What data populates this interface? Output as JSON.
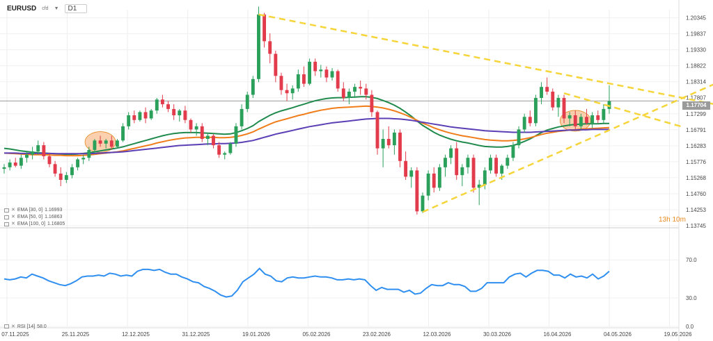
{
  "header": {
    "symbol": "EURUSD",
    "symbol_suffix": "cfd",
    "timeframe": "D1"
  },
  "indicators": {
    "ema": [
      {
        "label": "EMA [30, 0]",
        "value": "1.16993",
        "color": "#1f8a4c"
      },
      {
        "label": "EMA [50, 0]",
        "value": "1.16863",
        "color": "#f07d1a"
      },
      {
        "label": "EMA [100, 0]",
        "value": "1.16805",
        "color": "#5b3fb5"
      }
    ],
    "rsi": {
      "label": "RSI [14]",
      "value": "58.0",
      "color": "#2f8ff0"
    }
  },
  "countdown": "13h 10m",
  "current_price": "1.17704",
  "chart_data": [
    {
      "type": "candlestick",
      "x_labels": [
        "07.11.2025",
        "25.11.2025",
        "12.12.2025",
        "31.12.2025",
        "19.01.2026",
        "05.02.2026",
        "23.02.2026",
        "12.03.2026",
        "30.03.2026",
        "16.04.2026",
        "04.05.2026",
        "19.05.2026"
      ],
      "y_ticks": [
        "1.20345",
        "1.19837",
        "1.19330",
        "1.18822",
        "1.18314",
        "1.17807",
        "1.17299",
        "1.16791",
        "1.16283",
        "1.15776",
        "1.15268",
        "1.14760",
        "1.14253",
        "1.13745"
      ],
      "ylim": [
        1.13745,
        1.206
      ],
      "candles": [
        [
          1.1555,
          1.157,
          1.154,
          1.156
        ],
        [
          1.156,
          1.1585,
          1.155,
          1.1575
        ],
        [
          1.1575,
          1.159,
          1.156,
          1.1565
        ],
        [
          1.1565,
          1.16,
          1.1555,
          1.159
        ],
        [
          1.159,
          1.161,
          1.1575,
          1.16
        ],
        [
          1.16,
          1.1625,
          1.1585,
          1.161
        ],
        [
          1.161,
          1.1645,
          1.16,
          1.163
        ],
        [
          1.163,
          1.164,
          1.1585,
          1.1595
        ],
        [
          1.1595,
          1.1605,
          1.156,
          1.157
        ],
        [
          1.157,
          1.158,
          1.153,
          1.154
        ],
        [
          1.154,
          1.156,
          1.15,
          1.152
        ],
        [
          1.152,
          1.1545,
          1.151,
          1.1535
        ],
        [
          1.1535,
          1.157,
          1.1525,
          1.156
        ],
        [
          1.156,
          1.159,
          1.155,
          1.1585
        ],
        [
          1.1585,
          1.16,
          1.157,
          1.159
        ],
        [
          1.159,
          1.1625,
          1.158,
          1.1615
        ],
        [
          1.1615,
          1.165,
          1.1605,
          1.1645
        ],
        [
          1.1645,
          1.166,
          1.1625,
          1.1635
        ],
        [
          1.1635,
          1.165,
          1.162,
          1.1645
        ],
        [
          1.1645,
          1.166,
          1.1615,
          1.1625
        ],
        [
          1.1625,
          1.165,
          1.162,
          1.1645
        ],
        [
          1.1645,
          1.17,
          1.164,
          1.169
        ],
        [
          1.169,
          1.1735,
          1.168,
          1.1725
        ],
        [
          1.1725,
          1.174,
          1.17,
          1.171
        ],
        [
          1.171,
          1.174,
          1.1705,
          1.1735
        ],
        [
          1.1735,
          1.175,
          1.17,
          1.1715
        ],
        [
          1.1715,
          1.1745,
          1.171,
          1.174
        ],
        [
          1.174,
          1.178,
          1.173,
          1.1775
        ],
        [
          1.1775,
          1.179,
          1.175,
          1.176
        ],
        [
          1.176,
          1.177,
          1.1735,
          1.1745
        ],
        [
          1.1745,
          1.176,
          1.171,
          1.1725
        ],
        [
          1.1725,
          1.1745,
          1.1705,
          1.174
        ],
        [
          1.174,
          1.1755,
          1.17,
          1.171
        ],
        [
          1.171,
          1.1715,
          1.167,
          1.168
        ],
        [
          1.168,
          1.17,
          1.166,
          1.169
        ],
        [
          1.169,
          1.17,
          1.164,
          1.165
        ],
        [
          1.165,
          1.167,
          1.163,
          1.166
        ],
        [
          1.166,
          1.1665,
          1.162,
          1.163
        ],
        [
          1.163,
          1.164,
          1.159,
          1.16
        ],
        [
          1.16,
          1.161,
          1.1585,
          1.1605
        ],
        [
          1.1605,
          1.164,
          1.16,
          1.1635
        ],
        [
          1.1635,
          1.17,
          1.1625,
          1.169
        ],
        [
          1.169,
          1.176,
          1.168,
          1.1745
        ],
        [
          1.1745,
          1.18,
          1.1735,
          1.179
        ],
        [
          1.179,
          1.185,
          1.178,
          1.184
        ],
        [
          1.184,
          1.207,
          1.183,
          1.2045
        ],
        [
          1.2045,
          1.205,
          1.194,
          1.196
        ],
        [
          1.196,
          1.1985,
          1.189,
          1.192
        ],
        [
          1.192,
          1.193,
          1.183,
          1.185
        ],
        [
          1.185,
          1.186,
          1.179,
          1.1805
        ],
        [
          1.1805,
          1.1825,
          1.177,
          1.1795
        ],
        [
          1.1795,
          1.182,
          1.1775,
          1.181
        ],
        [
          1.181,
          1.187,
          1.18,
          1.1855
        ],
        [
          1.1855,
          1.188,
          1.1815,
          1.1825
        ],
        [
          1.1825,
          1.1905,
          1.182,
          1.1895
        ],
        [
          1.1895,
          1.1905,
          1.185,
          1.1865
        ],
        [
          1.1865,
          1.1885,
          1.1845,
          1.187
        ],
        [
          1.187,
          1.188,
          1.183,
          1.1845
        ],
        [
          1.1845,
          1.1875,
          1.1835,
          1.1865
        ],
        [
          1.1865,
          1.187,
          1.18,
          1.181
        ],
        [
          1.181,
          1.183,
          1.177,
          1.178
        ],
        [
          1.178,
          1.181,
          1.176,
          1.18
        ],
        [
          1.18,
          1.1825,
          1.178,
          1.1815
        ],
        [
          1.1815,
          1.1835,
          1.179,
          1.181
        ],
        [
          1.181,
          1.1825,
          1.1775,
          1.179
        ],
        [
          1.179,
          1.1805,
          1.172,
          1.1735
        ],
        [
          1.1735,
          1.174,
          1.16,
          1.162
        ],
        [
          1.162,
          1.168,
          1.156,
          1.165
        ],
        [
          1.165,
          1.169,
          1.162,
          1.163
        ],
        [
          1.163,
          1.168,
          1.16,
          1.167
        ],
        [
          1.167,
          1.168,
          1.156,
          1.158
        ],
        [
          1.158,
          1.161,
          1.152,
          1.153
        ],
        [
          1.153,
          1.156,
          1.1495,
          1.155
        ],
        [
          1.155,
          1.156,
          1.141,
          1.142
        ],
        [
          1.142,
          1.148,
          1.1415,
          1.147
        ],
        [
          1.147,
          1.155,
          1.1455,
          1.154
        ],
        [
          1.154,
          1.156,
          1.148,
          1.1495
        ],
        [
          1.1495,
          1.157,
          1.1485,
          1.156
        ],
        [
          1.156,
          1.16,
          1.153,
          1.159
        ],
        [
          1.159,
          1.163,
          1.157,
          1.162
        ],
        [
          1.162,
          1.164,
          1.152,
          1.1535
        ],
        [
          1.1535,
          1.157,
          1.15,
          1.156
        ],
        [
          1.156,
          1.16,
          1.154,
          1.159
        ],
        [
          1.159,
          1.16,
          1.148,
          1.1495
        ],
        [
          1.1495,
          1.152,
          1.144,
          1.1505
        ],
        [
          1.1505,
          1.156,
          1.149,
          1.155
        ],
        [
          1.155,
          1.16,
          1.154,
          1.159
        ],
        [
          1.159,
          1.16,
          1.153,
          1.154
        ],
        [
          1.154,
          1.157,
          1.152,
          1.1565
        ],
        [
          1.1565,
          1.16,
          1.1555,
          1.159
        ],
        [
          1.159,
          1.164,
          1.158,
          1.163
        ],
        [
          1.163,
          1.169,
          1.162,
          1.168
        ],
        [
          1.168,
          1.173,
          1.167,
          1.172
        ],
        [
          1.172,
          1.174,
          1.169,
          1.17
        ],
        [
          1.17,
          1.179,
          1.169,
          1.178
        ],
        [
          1.178,
          1.183,
          1.176,
          1.1815
        ],
        [
          1.1815,
          1.1845,
          1.179,
          1.18
        ],
        [
          1.18,
          1.181,
          1.174,
          1.175
        ],
        [
          1.175,
          1.179,
          1.172,
          1.178
        ],
        [
          1.178,
          1.179,
          1.17,
          1.1715
        ],
        [
          1.1715,
          1.1735,
          1.169,
          1.1725
        ],
        [
          1.1725,
          1.174,
          1.168,
          1.169
        ],
        [
          1.169,
          1.173,
          1.168,
          1.172
        ],
        [
          1.172,
          1.1745,
          1.1695,
          1.17
        ],
        [
          1.17,
          1.1735,
          1.1685,
          1.1725
        ],
        [
          1.1725,
          1.174,
          1.17,
          1.171
        ],
        [
          1.171,
          1.176,
          1.17,
          1.1745
        ],
        [
          1.1745,
          1.182,
          1.173,
          1.177
        ]
      ],
      "series": [
        {
          "name": "EMA [30, 0]",
          "values": [
            1.162,
            1.1618,
            1.1615,
            1.1612,
            1.161,
            1.1608,
            1.1606,
            1.1605,
            1.1604,
            1.1603,
            1.1602,
            1.1601,
            1.1601,
            1.1602,
            1.1604,
            1.1606,
            1.1609,
            1.1612,
            1.1615,
            1.1618,
            1.1621,
            1.1625,
            1.163,
            1.1635,
            1.164,
            1.1645,
            1.165,
            1.1655,
            1.166,
            1.1664,
            1.1667,
            1.1669,
            1.167,
            1.167,
            1.167,
            1.1669,
            1.1668,
            1.1667,
            1.1666,
            1.1665,
            1.1666,
            1.167,
            1.1676,
            1.1683,
            1.1692,
            1.1705,
            1.1715,
            1.1725,
            1.1733,
            1.1739,
            1.1744,
            1.1749,
            1.1755,
            1.176,
            1.1766,
            1.1771,
            1.1775,
            1.1778,
            1.178,
            1.1781,
            1.1781,
            1.1782,
            1.1783,
            1.1784,
            1.1784,
            1.1782,
            1.1778,
            1.1772,
            1.1765,
            1.1757,
            1.1747,
            1.1735,
            1.1722,
            1.1707,
            1.1693,
            1.1682,
            1.1671,
            1.1662,
            1.1655,
            1.1649,
            1.1644,
            1.164,
            1.1637,
            1.1633,
            1.1629,
            1.1626,
            1.1625,
            1.1624,
            1.1624,
            1.1626,
            1.1629,
            1.1635,
            1.1642,
            1.165,
            1.166,
            1.167,
            1.1678,
            1.1683,
            1.1688,
            1.1691,
            1.1694,
            1.1696,
            1.1697,
            1.1698,
            1.1698,
            1.1698,
            1.1699,
            1.1699
          ]
        },
        {
          "name": "EMA [50, 0]",
          "values": [
            1.1605,
            1.1604,
            1.1603,
            1.1602,
            1.1601,
            1.16,
            1.16,
            1.16,
            1.1599,
            1.1598,
            1.1598,
            1.1597,
            1.1597,
            1.1597,
            1.1598,
            1.1599,
            1.1601,
            1.1603,
            1.1605,
            1.1607,
            1.1609,
            1.1612,
            1.1616,
            1.162,
            1.1624,
            1.1628,
            1.1632,
            1.1637,
            1.1641,
            1.1645,
            1.1648,
            1.1651,
            1.1653,
            1.1654,
            1.1655,
            1.1655,
            1.1655,
            1.1655,
            1.1654,
            1.1654,
            1.1655,
            1.1657,
            1.1661,
            1.1666,
            1.1672,
            1.1681,
            1.1689,
            1.1697,
            1.1704,
            1.1709,
            1.1714,
            1.1719,
            1.1724,
            1.1728,
            1.1733,
            1.1737,
            1.1741,
            1.1744,
            1.1747,
            1.1749,
            1.175,
            1.1751,
            1.1752,
            1.1753,
            1.1754,
            1.1753,
            1.1751,
            1.1748,
            1.1744,
            1.1739,
            1.1733,
            1.1726,
            1.1718,
            1.1709,
            1.17,
            1.1693,
            1.1685,
            1.1679,
            1.1673,
            1.1668,
            1.1664,
            1.166,
            1.1657,
            1.1654,
            1.1651,
            1.1648,
            1.1646,
            1.1645,
            1.1644,
            1.1644,
            1.1645,
            1.1647,
            1.165,
            1.1654,
            1.1659,
            1.1664,
            1.1668,
            1.1671,
            1.1674,
            1.1676,
            1.1678,
            1.1679,
            1.1681,
            1.1682,
            1.1683,
            1.1684,
            1.1685,
            1.1686
          ]
        },
        {
          "name": "EMA [100, 0]",
          "values": [
            1.1605,
            1.1605,
            1.1605,
            1.1604,
            1.1604,
            1.1604,
            1.1604,
            1.1604,
            1.1604,
            1.1603,
            1.1603,
            1.1603,
            1.1603,
            1.1603,
            1.1603,
            1.1603,
            1.1604,
            1.1605,
            1.1606,
            1.1607,
            1.1608,
            1.1609,
            1.1611,
            1.1613,
            1.1615,
            1.1617,
            1.1619,
            1.1621,
            1.1623,
            1.1625,
            1.1627,
            1.1629,
            1.163,
            1.1631,
            1.1632,
            1.1633,
            1.1634,
            1.1634,
            1.1635,
            1.1635,
            1.1636,
            1.1637,
            1.1639,
            1.1642,
            1.1645,
            1.165,
            1.1655,
            1.166,
            1.1665,
            1.1669,
            1.1673,
            1.1677,
            1.1681,
            1.1685,
            1.1689,
            1.1692,
            1.1695,
            1.1698,
            1.1701,
            1.1703,
            1.1705,
            1.1707,
            1.1709,
            1.1711,
            1.1713,
            1.1714,
            1.1715,
            1.1715,
            1.1715,
            1.1714,
            1.1713,
            1.1711,
            1.1709,
            1.1706,
            1.1703,
            1.17,
            1.1697,
            1.1694,
            1.1691,
            1.1688,
            1.1686,
            1.1684,
            1.1682,
            1.168,
            1.1678,
            1.1676,
            1.1675,
            1.1674,
            1.1673,
            1.1672,
            1.1671,
            1.1671,
            1.1671,
            1.1671,
            1.1672,
            1.1673,
            1.1674,
            1.1675,
            1.1676,
            1.1677,
            1.1678,
            1.1678,
            1.1679,
            1.1679,
            1.168,
            1.168,
            1.168,
            1.168
          ]
        }
      ],
      "trendlines": [
        {
          "from": [
            45,
            1.2045
          ],
          "to": [
            120,
            1.178
          ]
        },
        {
          "from": [
            74,
            1.1418
          ],
          "to": [
            120,
            1.178
          ]
        }
      ],
      "highlight_circles": [
        17,
        101
      ],
      "colors": {
        "up": "#2aa05a",
        "down": "#e23b4b",
        "trend": "#f5d53a"
      }
    },
    {
      "type": "line",
      "title": "RSI [14]",
      "y_ticks": [
        "70.0",
        "30.0",
        "0.0"
      ],
      "ylim": [
        0,
        95
      ],
      "values": [
        50,
        49,
        50,
        52,
        51,
        55,
        53,
        51,
        48,
        46,
        44,
        43,
        45,
        48,
        52,
        53,
        53,
        54,
        53,
        56,
        55,
        53,
        54,
        53,
        58,
        60,
        60,
        59,
        60,
        57,
        55,
        55,
        52,
        50,
        47,
        46,
        42,
        40,
        37,
        33,
        31,
        32,
        38,
        47,
        51,
        55,
        61,
        55,
        53,
        48,
        47,
        51,
        52,
        51,
        51,
        52,
        53,
        52,
        52,
        51,
        49,
        49,
        50,
        49,
        50,
        49,
        43,
        38,
        41,
        39,
        39,
        39,
        36,
        38,
        34,
        35,
        40,
        44,
        43,
        43,
        46,
        44,
        44,
        42,
        37,
        37,
        40,
        46,
        46,
        46,
        46,
        52,
        55,
        56,
        52,
        56,
        59,
        59,
        58,
        54,
        54,
        51,
        55,
        52,
        53,
        51,
        55,
        50,
        53,
        58
      ]
    }
  ]
}
